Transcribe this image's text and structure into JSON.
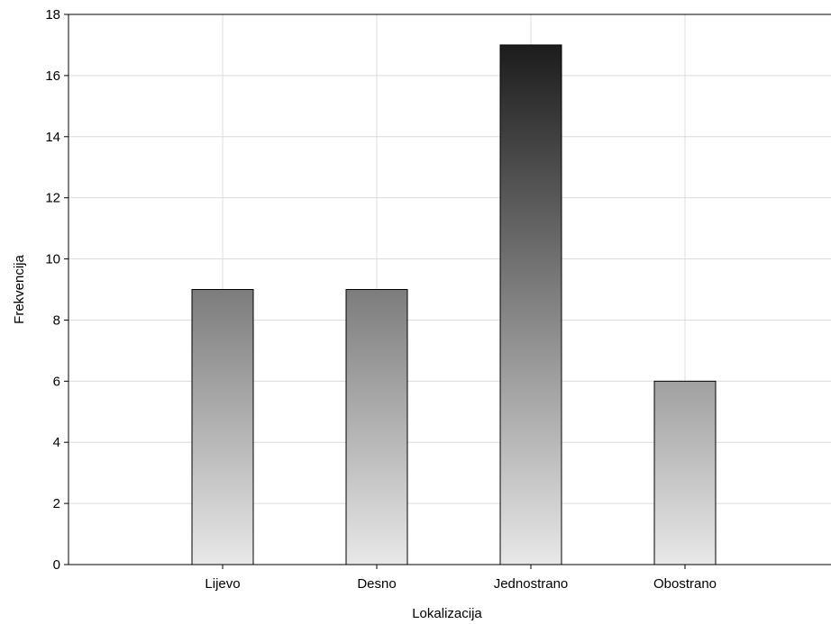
{
  "chart_data": {
    "type": "bar",
    "categories": [
      "Lijevo",
      "Desno",
      "Jednostrano",
      "Obostrano"
    ],
    "values": [
      9,
      9,
      17,
      6
    ],
    "xlabel": "Lokalizacija",
    "ylabel": "Frekvencija",
    "ylim": [
      0,
      18
    ],
    "yticks": [
      0,
      2,
      4,
      6,
      8,
      10,
      12,
      14,
      16,
      18
    ],
    "grid": true,
    "legend": "none",
    "colors": {
      "bar_top": "#101010",
      "bar_bottom": "#e8e8e8",
      "bar_border": "#000000",
      "grid": "#dcdcdc",
      "axis": "#000000"
    }
  }
}
